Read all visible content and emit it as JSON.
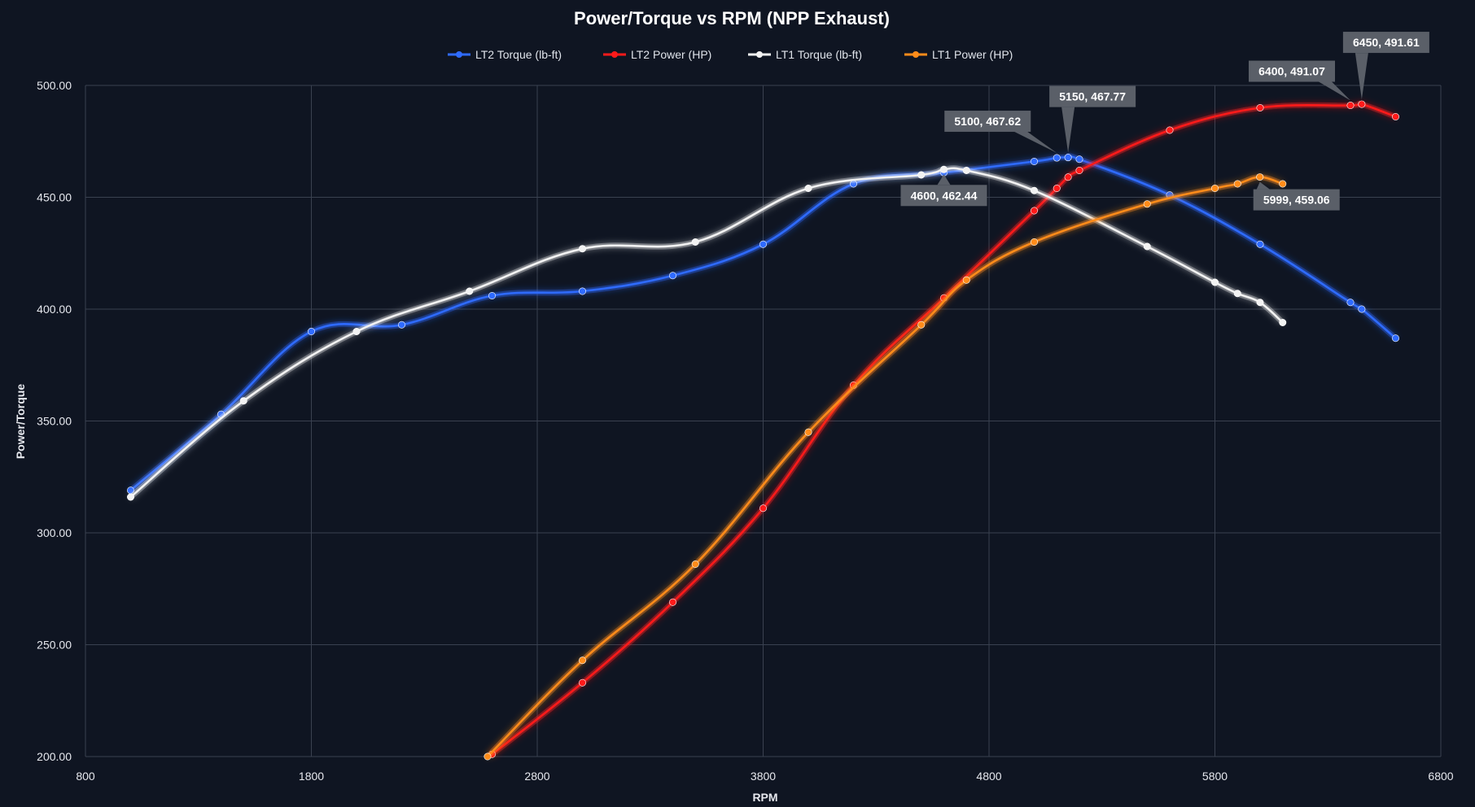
{
  "chart_data": {
    "type": "line",
    "title": "Power/Torque vs RPM (NPP Exhaust)",
    "xlabel": "RPM",
    "ylabel": "Power/Torque",
    "xlim": [
      800,
      6800
    ],
    "ylim": [
      200,
      500
    ],
    "x_ticks": [
      "800",
      "1800",
      "2800",
      "3800",
      "4800",
      "5800",
      "6800"
    ],
    "y_ticks": [
      "200.00",
      "250.00",
      "300.00",
      "350.00",
      "400.00",
      "450.00",
      "500.00"
    ],
    "grid": true,
    "legend_position": "top",
    "series": [
      {
        "name": "LT2 Torque (lb-ft)",
        "color": "#2f6bff",
        "marker": "circle",
        "points": [
          [
            1000,
            319
          ],
          [
            1400,
            353
          ],
          [
            1800,
            390
          ],
          [
            2200,
            393
          ],
          [
            2600,
            406
          ],
          [
            3000,
            408
          ],
          [
            3400,
            415
          ],
          [
            3800,
            429
          ],
          [
            4200,
            456
          ],
          [
            4600,
            461
          ],
          [
            5000,
            466
          ],
          [
            5100,
            467.62
          ],
          [
            5150,
            467.77
          ],
          [
            5200,
            467
          ],
          [
            5600,
            451
          ],
          [
            6000,
            429
          ],
          [
            6400,
            403
          ],
          [
            6450,
            400
          ],
          [
            6600,
            387
          ]
        ]
      },
      {
        "name": "LT2 Power (HP)",
        "color": "#ff1a1a",
        "marker": "circle",
        "points": [
          [
            2600,
            201
          ],
          [
            3000,
            233
          ],
          [
            3400,
            269
          ],
          [
            3800,
            311
          ],
          [
            4200,
            366
          ],
          [
            4600,
            405
          ],
          [
            5000,
            444
          ],
          [
            5100,
            454
          ],
          [
            5150,
            459
          ],
          [
            5200,
            462
          ],
          [
            5600,
            480
          ],
          [
            6000,
            490
          ],
          [
            6400,
            491.07
          ],
          [
            6450,
            491.61
          ],
          [
            6600,
            486
          ]
        ]
      },
      {
        "name": "LT1 Torque (lb-ft)",
        "color": "#f2f2f2",
        "marker": "circle",
        "points": [
          [
            1000,
            316
          ],
          [
            1500,
            359
          ],
          [
            2000,
            390
          ],
          [
            2500,
            408
          ],
          [
            3000,
            427
          ],
          [
            3500,
            430
          ],
          [
            4000,
            454
          ],
          [
            4500,
            460
          ],
          [
            4600,
            462.44
          ],
          [
            4700,
            462
          ],
          [
            5000,
            453
          ],
          [
            5500,
            428
          ],
          [
            5800,
            412
          ],
          [
            5900,
            407
          ],
          [
            6000,
            403
          ],
          [
            6100,
            394
          ]
        ]
      },
      {
        "name": "LT1 Power (HP)",
        "color": "#ff8c1a",
        "marker": "circle",
        "points": [
          [
            2580,
            200
          ],
          [
            3000,
            243
          ],
          [
            3500,
            286
          ],
          [
            4000,
            345
          ],
          [
            4500,
            393
          ],
          [
            4700,
            413
          ],
          [
            5000,
            430
          ],
          [
            5500,
            447
          ],
          [
            5800,
            454
          ],
          [
            5900,
            456
          ],
          [
            5999,
            459.06
          ],
          [
            6100,
            456
          ]
        ]
      }
    ],
    "annotations": [
      {
        "label": "5100, 467.62",
        "x": 5100,
        "y": 467.62,
        "placement": "above-left"
      },
      {
        "label": "5150, 467.77",
        "x": 5150,
        "y": 467.77,
        "placement": "above"
      },
      {
        "label": "4600, 462.44",
        "x": 4600,
        "y": 462.44,
        "placement": "below"
      },
      {
        "label": "5999, 459.06",
        "x": 5999,
        "y": 459.06,
        "placement": "below-right"
      },
      {
        "label": "6400, 491.07",
        "x": 6400,
        "y": 491.07,
        "placement": "above-left"
      },
      {
        "label": "6450, 491.61",
        "x": 6450,
        "y": 491.61,
        "placement": "above"
      }
    ]
  }
}
